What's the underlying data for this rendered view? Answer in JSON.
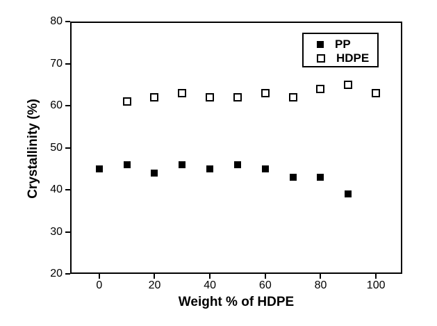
{
  "chart_data": {
    "type": "scatter",
    "title": "",
    "xlabel": "Weight % of HDPE",
    "ylabel": "Crystallinity (%)",
    "xlim": [
      -10.5,
      109.5
    ],
    "ylim": [
      20,
      80
    ],
    "x_ticks": [
      0,
      20,
      40,
      60,
      80,
      100
    ],
    "y_ticks": [
      80,
      70,
      60,
      50,
      40,
      30,
      20
    ],
    "grid": false,
    "frame": "box",
    "legend_position": "top-right",
    "series": [
      {
        "name": "PP",
        "marker": "filled-square",
        "x": [
          0,
          10,
          20,
          30,
          40,
          50,
          60,
          70,
          80,
          90
        ],
        "y": [
          45,
          46,
          44,
          46,
          45,
          46,
          45,
          43,
          43,
          39
        ]
      },
      {
        "name": "HDPE",
        "marker": "open-square",
        "x": [
          10,
          20,
          30,
          40,
          50,
          60,
          70,
          80,
          90,
          100
        ],
        "y": [
          61,
          62,
          63,
          62,
          62,
          63,
          62,
          64,
          65,
          63
        ]
      }
    ],
    "colors": {
      "marker": "#000000",
      "frame": "#000000",
      "background": "#ffffff"
    }
  }
}
